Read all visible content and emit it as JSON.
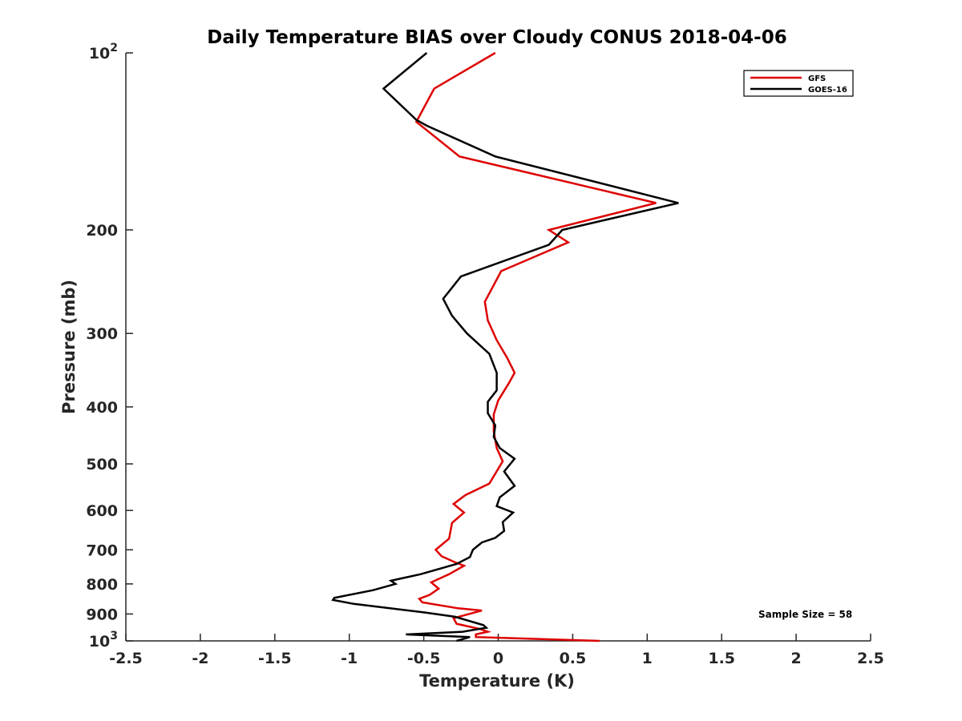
{
  "chart_data": {
    "type": "line",
    "title": "Daily Temperature BIAS over Cloudy CONUS 2018-04-06",
    "xlabel": "Temperature (K)",
    "ylabel": "Pressure (mb)",
    "xlim": [
      -2.5,
      2.5
    ],
    "ylim": [
      100,
      1000
    ],
    "y_scale": "log",
    "y_reversed": true,
    "x_ticks": [
      -2.5,
      -2,
      -1.5,
      -1,
      -0.5,
      0,
      0.5,
      1,
      1.5,
      2,
      2.5
    ],
    "x_tick_labels": [
      "-2.5",
      "-2",
      "-1.5",
      "-1",
      "-0.5",
      "0",
      "0.5",
      "1",
      "1.5",
      "2",
      "2.5"
    ],
    "y_ticks": [
      {
        "value": 100,
        "base": "10",
        "exp": "2"
      },
      {
        "value": 200,
        "label": "200"
      },
      {
        "value": 300,
        "label": "300"
      },
      {
        "value": 400,
        "label": "400"
      },
      {
        "value": 500,
        "label": "500"
      },
      {
        "value": 600,
        "label": "600"
      },
      {
        "value": 700,
        "label": "700"
      },
      {
        "value": 800,
        "label": "800"
      },
      {
        "value": 900,
        "label": "900"
      },
      {
        "value": 1000,
        "base": "10",
        "exp": "3"
      }
    ],
    "grid": false,
    "legend_position": "top-right",
    "annotation": "Sample Size = 58",
    "series": [
      {
        "name": "GFS",
        "color": "#dd0000",
        "points": [
          [
            -0.02,
            100
          ],
          [
            -0.43,
            115
          ],
          [
            -0.55,
            131
          ],
          [
            -0.26,
            150
          ],
          [
            1.06,
            180
          ],
          [
            0.34,
            200
          ],
          [
            0.47,
            210
          ],
          [
            0.02,
            235
          ],
          [
            -0.09,
            265
          ],
          [
            -0.07,
            285
          ],
          [
            -0.01,
            308
          ],
          [
            0.06,
            330
          ],
          [
            0.11,
            350
          ],
          [
            0.07,
            365
          ],
          [
            0.0,
            390
          ],
          [
            -0.03,
            412
          ],
          [
            -0.03,
            440
          ],
          [
            -0.01,
            470
          ],
          [
            0.03,
            495
          ],
          [
            -0.06,
            540
          ],
          [
            -0.22,
            565
          ],
          [
            -0.3,
            585
          ],
          [
            -0.23,
            605
          ],
          [
            -0.31,
            630
          ],
          [
            -0.33,
            670
          ],
          [
            -0.42,
            700
          ],
          [
            -0.38,
            718
          ],
          [
            -0.29,
            735
          ],
          [
            -0.23,
            745
          ],
          [
            -0.33,
            770
          ],
          [
            -0.45,
            795
          ],
          [
            -0.4,
            815
          ],
          [
            -0.46,
            835
          ],
          [
            -0.53,
            848
          ],
          [
            -0.51,
            860
          ],
          [
            -0.27,
            880
          ],
          [
            -0.11,
            888
          ],
          [
            -0.3,
            915
          ],
          [
            -0.28,
            935
          ],
          [
            -0.12,
            955
          ],
          [
            -0.07,
            965
          ],
          [
            -0.15,
            975
          ],
          [
            -0.15,
            985
          ],
          [
            0.68,
            1000
          ]
        ]
      },
      {
        "name": "GOES-16",
        "color": "#000000",
        "points": [
          [
            -0.48,
            100
          ],
          [
            -0.77,
            115
          ],
          [
            -0.55,
            130
          ],
          [
            -0.48,
            133
          ],
          [
            -0.02,
            150
          ],
          [
            1.21,
            180
          ],
          [
            0.43,
            200
          ],
          [
            0.34,
            212
          ],
          [
            -0.25,
            240
          ],
          [
            -0.37,
            262
          ],
          [
            -0.31,
            280
          ],
          [
            -0.21,
            300
          ],
          [
            -0.06,
            325
          ],
          [
            -0.01,
            350
          ],
          [
            -0.01,
            375
          ],
          [
            -0.07,
            392
          ],
          [
            -0.07,
            410
          ],
          [
            -0.02,
            430
          ],
          [
            -0.03,
            450
          ],
          [
            0.01,
            470
          ],
          [
            0.11,
            490
          ],
          [
            0.04,
            515
          ],
          [
            0.11,
            545
          ],
          [
            0.01,
            570
          ],
          [
            -0.01,
            590
          ],
          [
            0.1,
            605
          ],
          [
            0.03,
            628
          ],
          [
            0.04,
            650
          ],
          [
            -0.02,
            668
          ],
          [
            -0.11,
            680
          ],
          [
            -0.17,
            700
          ],
          [
            -0.19,
            720
          ],
          [
            -0.28,
            740
          ],
          [
            -0.52,
            770
          ],
          [
            -0.72,
            790
          ],
          [
            -0.69,
            800
          ],
          [
            -0.84,
            820
          ],
          [
            -1.1,
            845
          ],
          [
            -1.11,
            852
          ],
          [
            -0.97,
            865
          ],
          [
            -0.49,
            895
          ],
          [
            -0.29,
            910
          ],
          [
            -0.1,
            940
          ],
          [
            -0.08,
            950
          ],
          [
            -0.24,
            965
          ],
          [
            -0.62,
            975
          ],
          [
            -0.19,
            985
          ],
          [
            -0.28,
            1000
          ]
        ]
      }
    ]
  }
}
